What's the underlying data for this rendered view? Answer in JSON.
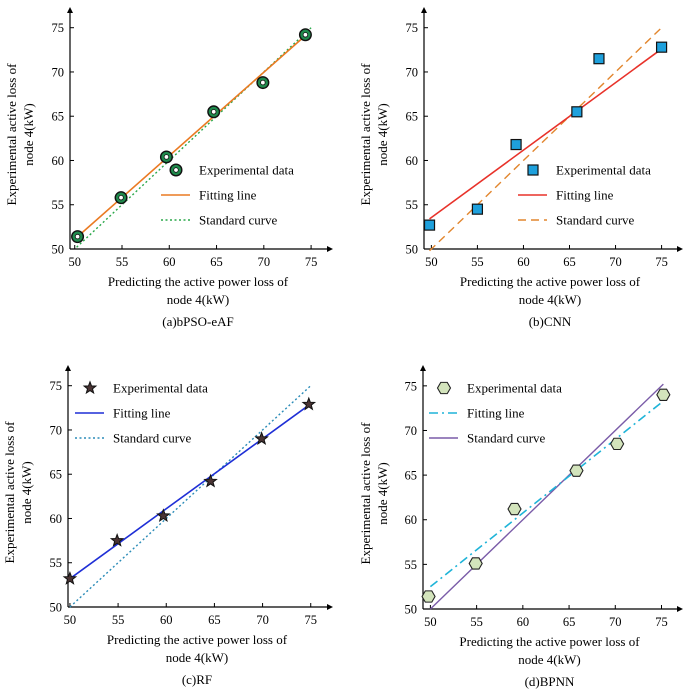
{
  "chart_data": [
    {
      "type": "scatter",
      "caption": "(a)bPSO-eAF",
      "xlabel": [
        "Predicting the active power loss of",
        "node 4(kW)"
      ],
      "ylabel": [
        "Experimental active loss of",
        "node 4(kW)"
      ],
      "xlim": [
        49.5,
        77
      ],
      "ylim": [
        50,
        77
      ],
      "xticks": [
        "50",
        "55",
        "60",
        "65",
        "70",
        "75"
      ],
      "yticks": [
        "50",
        "55",
        "60",
        "65",
        "70",
        "75"
      ],
      "legend": {
        "placement": "right-center",
        "experimental": "Experimental data",
        "fitting": "Fitting line",
        "standard": "Standard curve"
      },
      "marker": "ring",
      "colors": {
        "marker_fill": "#1f8a4c",
        "fitting": "#ea7a22",
        "standard": "#2aa84a"
      },
      "points": {
        "x": [
          50.3,
          54.9,
          59.7,
          64.7,
          69.9,
          74.4
        ],
        "y": [
          51.4,
          55.8,
          60.4,
          65.5,
          68.8,
          74.2
        ]
      },
      "fitting_line": {
        "x": [
          50.2,
          74.6
        ],
        "y": [
          51.3,
          74.3
        ]
      },
      "standard_curve": {
        "x": [
          50.2,
          75.0
        ],
        "y": [
          50.2,
          75.0
        ]
      },
      "line_styles": {
        "fitting": "solid",
        "standard": "dotted"
      }
    },
    {
      "type": "scatter",
      "caption": "(b)CNN",
      "xlabel": [
        "Predicting the active power loss of",
        "node 4(kW)"
      ],
      "ylabel": [
        "Experimental active loss of",
        "node 4(kW)"
      ],
      "xlim": [
        49.2,
        77
      ],
      "ylim": [
        50,
        77
      ],
      "xticks": [
        "50",
        "55",
        "60",
        "65",
        "70",
        "75"
      ],
      "yticks": [
        "50",
        "55",
        "60",
        "65",
        "70",
        "75"
      ],
      "legend": {
        "placement": "right-center",
        "experimental": "Experimental data",
        "fitting": "Fitting line",
        "standard": "Standard curve"
      },
      "marker": "square",
      "colors": {
        "marker_fill": "#1ea0dc",
        "fitting": "#e8322a",
        "standard": "#e2862e"
      },
      "points": {
        "x": [
          49.8,
          55.0,
          59.2,
          65.8,
          68.2,
          75.0
        ],
        "y": [
          52.7,
          54.5,
          61.8,
          65.5,
          71.5,
          72.8
        ]
      },
      "fitting_line": {
        "x": [
          49.8,
          75.0
        ],
        "y": [
          53.4,
          72.6
        ]
      },
      "standard_curve": {
        "x": [
          49.8,
          75.0
        ],
        "y": [
          49.8,
          75.0
        ]
      },
      "line_styles": {
        "fitting": "solid",
        "standard": "dashed"
      }
    },
    {
      "type": "scatter",
      "caption": "(c)RF",
      "xlabel": [
        "Predicting the active power loss of",
        "node 4(kW)"
      ],
      "ylabel": [
        "Experimental active loss of",
        "node 4(kW)"
      ],
      "xlim": [
        49.8,
        77
      ],
      "ylim": [
        50,
        77
      ],
      "xticks": [
        "50",
        "55",
        "60",
        "65",
        "70",
        "75"
      ],
      "yticks": [
        "50",
        "55",
        "60",
        "65",
        "70",
        "75"
      ],
      "legend": {
        "placement": "top-left",
        "experimental": "Experimental data",
        "fitting": "Fitting line",
        "standard": "Standard curve"
      },
      "marker": "star",
      "colors": {
        "marker_fill": "#4a3434",
        "fitting": "#1f2fd6",
        "standard": "#2b8cb8"
      },
      "points": {
        "x": [
          50.0,
          54.9,
          59.7,
          64.6,
          69.9,
          74.8
        ],
        "y": [
          53.2,
          57.5,
          60.3,
          64.2,
          69.0,
          72.9
        ]
      },
      "fitting_line": {
        "x": [
          50.0,
          74.8
        ],
        "y": [
          53.2,
          72.8
        ]
      },
      "standard_curve": {
        "x": [
          50.0,
          75.0
        ],
        "y": [
          50.0,
          75.0
        ]
      },
      "line_styles": {
        "fitting": "solid",
        "standard": "dotted"
      }
    },
    {
      "type": "scatter",
      "caption": "(d)BPNN",
      "xlabel": [
        "Predicting the active power loss of",
        "node 4(kW)"
      ],
      "ylabel": [
        "Experimental active loss of",
        "node 4(kW)"
      ],
      "xlim": [
        49.2,
        77
      ],
      "ylim": [
        50,
        77
      ],
      "xticks": [
        "50",
        "55",
        "60",
        "65",
        "70",
        "75"
      ],
      "yticks": [
        "50",
        "55",
        "60",
        "65",
        "70",
        "75"
      ],
      "legend": {
        "placement": "top-left",
        "experimental": "Experimental data",
        "fitting": "Fitting line",
        "standard": "Standard curve"
      },
      "marker": "hexagon",
      "colors": {
        "marker_fill": "#d3e4bc",
        "fitting": "#1fb4d8",
        "standard": "#7a5ca8"
      },
      "points": {
        "x": [
          49.8,
          54.9,
          59.1,
          65.8,
          70.2,
          75.2
        ],
        "y": [
          51.4,
          55.1,
          61.2,
          65.5,
          68.5,
          74.0
        ]
      },
      "fitting_line": {
        "x": [
          50.0,
          75.2
        ],
        "y": [
          52.5,
          73.3
        ]
      },
      "standard_curve": {
        "x": [
          50.0,
          75.2
        ],
        "y": [
          50.0,
          75.2
        ]
      },
      "line_styles": {
        "fitting": "dashdot",
        "standard": "solid"
      }
    }
  ]
}
